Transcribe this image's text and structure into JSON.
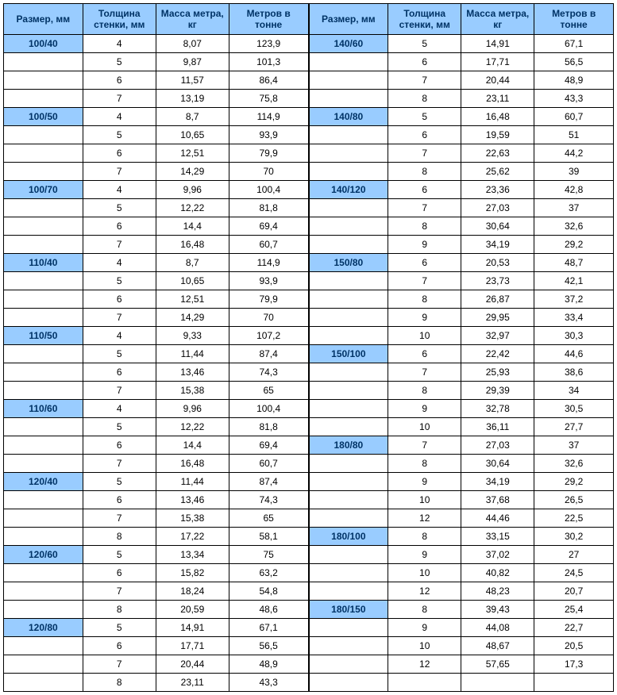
{
  "headers": [
    "Размер, мм",
    "Толщина стенки, мм",
    "Масса метра, кг",
    "Метров в тонне"
  ],
  "left": [
    [
      "100/40",
      "4",
      "8,07",
      "123,9"
    ],
    [
      "",
      "5",
      "9,87",
      "101,3"
    ],
    [
      "",
      "6",
      "11,57",
      "86,4"
    ],
    [
      "",
      "7",
      "13,19",
      "75,8"
    ],
    [
      "100/50",
      "4",
      "8,7",
      "114,9"
    ],
    [
      "",
      "5",
      "10,65",
      "93,9"
    ],
    [
      "",
      "6",
      "12,51",
      "79,9"
    ],
    [
      "",
      "7",
      "14,29",
      "70"
    ],
    [
      "100/70",
      "4",
      "9,96",
      "100,4"
    ],
    [
      "",
      "5",
      "12,22",
      "81,8"
    ],
    [
      "",
      "6",
      "14,4",
      "69,4"
    ],
    [
      "",
      "7",
      "16,48",
      "60,7"
    ],
    [
      "110/40",
      "4",
      "8,7",
      "114,9"
    ],
    [
      "",
      "5",
      "10,65",
      "93,9"
    ],
    [
      "",
      "6",
      "12,51",
      "79,9"
    ],
    [
      "",
      "7",
      "14,29",
      "70"
    ],
    [
      "110/50",
      "4",
      "9,33",
      "107,2"
    ],
    [
      "",
      "5",
      "11,44",
      "87,4"
    ],
    [
      "",
      "6",
      "13,46",
      "74,3"
    ],
    [
      "",
      "7",
      "15,38",
      "65"
    ],
    [
      "110/60",
      "4",
      "9,96",
      "100,4"
    ],
    [
      "",
      "5",
      "12,22",
      "81,8"
    ],
    [
      "",
      "6",
      "14,4",
      "69,4"
    ],
    [
      "",
      "7",
      "16,48",
      "60,7"
    ],
    [
      "120/40",
      "5",
      "11,44",
      "87,4"
    ],
    [
      "",
      "6",
      "13,46",
      "74,3"
    ],
    [
      "",
      "7",
      "15,38",
      "65"
    ],
    [
      "",
      "8",
      "17,22",
      "58,1"
    ],
    [
      "120/60",
      "5",
      "13,34",
      "75"
    ],
    [
      "",
      "6",
      "15,82",
      "63,2"
    ],
    [
      "",
      "7",
      "18,24",
      "54,8"
    ],
    [
      "",
      "8",
      "20,59",
      "48,6"
    ],
    [
      "120/80",
      "5",
      "14,91",
      "67,1"
    ],
    [
      "",
      "6",
      "17,71",
      "56,5"
    ],
    [
      "",
      "7",
      "20,44",
      "48,9"
    ],
    [
      "",
      "8",
      "23,11",
      "43,3"
    ]
  ],
  "right": [
    [
      "140/60",
      "5",
      "14,91",
      "67,1"
    ],
    [
      "",
      "6",
      "17,71",
      "56,5"
    ],
    [
      "",
      "7",
      "20,44",
      "48,9"
    ],
    [
      "",
      "8",
      "23,11",
      "43,3"
    ],
    [
      "140/80",
      "5",
      "16,48",
      "60,7"
    ],
    [
      "",
      "6",
      "19,59",
      "51"
    ],
    [
      "",
      "7",
      "22,63",
      "44,2"
    ],
    [
      "",
      "8",
      "25,62",
      "39"
    ],
    [
      "140/120",
      "6",
      "23,36",
      "42,8"
    ],
    [
      "",
      "7",
      "27,03",
      "37"
    ],
    [
      "",
      "8",
      "30,64",
      "32,6"
    ],
    [
      "",
      "9",
      "34,19",
      "29,2"
    ],
    [
      "150/80",
      "6",
      "20,53",
      "48,7"
    ],
    [
      "",
      "7",
      "23,73",
      "42,1"
    ],
    [
      "",
      "8",
      "26,87",
      "37,2"
    ],
    [
      "",
      "9",
      "29,95",
      "33,4"
    ],
    [
      "",
      "10",
      "32,97",
      "30,3"
    ],
    [
      "150/100",
      "6",
      "22,42",
      "44,6"
    ],
    [
      "",
      "7",
      "25,93",
      "38,6"
    ],
    [
      "",
      "8",
      "29,39",
      "34"
    ],
    [
      "",
      "9",
      "32,78",
      "30,5"
    ],
    [
      "",
      "10",
      "36,11",
      "27,7"
    ],
    [
      "180/80",
      "7",
      "27,03",
      "37"
    ],
    [
      "",
      "8",
      "30,64",
      "32,6"
    ],
    [
      "",
      "9",
      "34,19",
      "29,2"
    ],
    [
      "",
      "10",
      "37,68",
      "26,5"
    ],
    [
      "",
      "12",
      "44,46",
      "22,5"
    ],
    [
      "180/100",
      "8",
      "33,15",
      "30,2"
    ],
    [
      "",
      "9",
      "37,02",
      "27"
    ],
    [
      "",
      "10",
      "40,82",
      "24,5"
    ],
    [
      "",
      "12",
      "48,23",
      "20,7"
    ],
    [
      "180/150",
      "8",
      "39,43",
      "25,4"
    ],
    [
      "",
      "9",
      "44,08",
      "22,7"
    ],
    [
      "",
      "10",
      "48,67",
      "20,5"
    ],
    [
      "",
      "12",
      "57,65",
      "17,3"
    ],
    [
      "",
      "",
      "",
      ""
    ]
  ]
}
